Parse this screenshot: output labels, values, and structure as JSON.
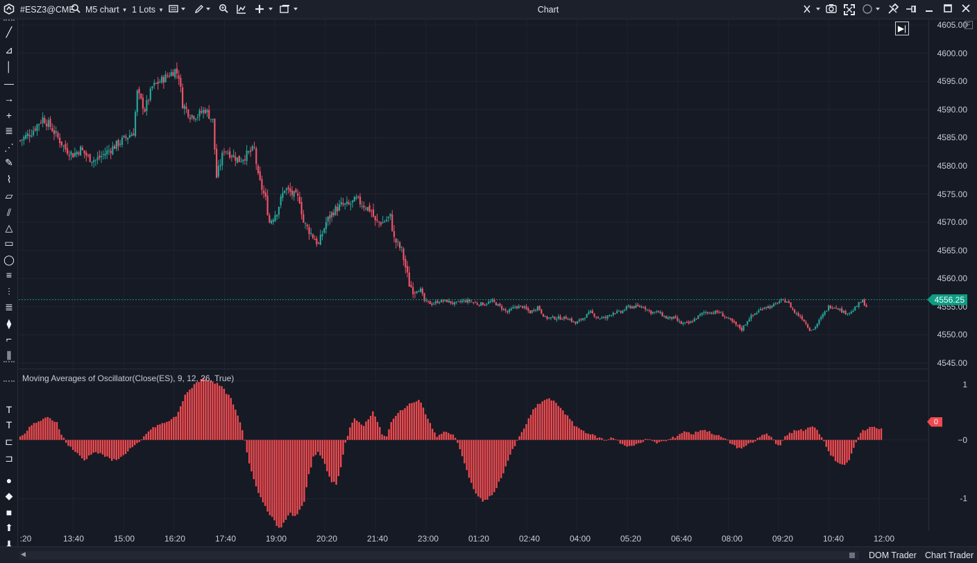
{
  "toolbar": {
    "logo_icon": "app-logo-icon",
    "symbol": "#ESZ3@CME",
    "chart_type": "M5 chart",
    "lots": "1 Lots",
    "window_title": "Chart"
  },
  "left_tools": [
    "line-tool-icon",
    "pitchfork-icon",
    "vertical-line-icon",
    "horizontal-line-icon",
    "arrow-icon",
    "crosshair-icon",
    "fib-levels-icon",
    "polyline-icon",
    "pen-icon",
    "brush-icon",
    "ruler-icon",
    "parallel-channel-icon",
    "triangle-icon",
    "rectangle-icon",
    "ellipse-icon",
    "fib-fan-icon",
    "fib-time-icon",
    "fib-extension-icon",
    "pattern-icon",
    "step-icon",
    "bars-icon",
    "text-fill-icon",
    "text-icon",
    "label-icon",
    "callout-icon",
    "circle-marker-icon",
    "diamond-marker-icon",
    "square-marker-icon",
    "arrow-up-icon",
    "arrow-down-icon"
  ],
  "price_axis": [
    "4605.00",
    "4600.00",
    "4595.00",
    "4590.00",
    "4585.00",
    "4580.00",
    "4575.00",
    "4570.00",
    "4565.00",
    "4560.00",
    "4555.00",
    "4550.00",
    "4545.00"
  ],
  "last_price": "4556.25",
  "oscillator": {
    "label": "Moving Averages of Oscillator(Close(ES), 9, 12, 26, True)",
    "axis": [
      "1",
      "−0",
      "-1"
    ],
    "badge": "0"
  },
  "time_axis": [
    ":20",
    "13:40",
    "15:00",
    "16:20",
    "17:40",
    "19:00",
    "20:20",
    "21:40",
    "23:00",
    "01:20",
    "02:40",
    "04:00",
    "05:20",
    "06:40",
    "08:00",
    "09:20",
    "10:40",
    "12:00"
  ],
  "bottom": {
    "dom_trader": "DOM Trader",
    "chart_trader": "Chart Trader"
  },
  "colors": {
    "up": "#26a69a",
    "down": "#ef5368",
    "histogram": "#ef4a4f",
    "last_price": "#0f9b84",
    "background": "#131722"
  },
  "chart_data": [
    {
      "type": "candlestick",
      "symbol": "#ESZ3@CME",
      "timeframe": "M5",
      "ylim": [
        4544,
        4606
      ],
      "x_ticks": [
        ":20",
        "13:40",
        "15:00",
        "16:20",
        "17:40",
        "19:00",
        "20:20",
        "21:40",
        "23:00",
        "01:20",
        "02:40",
        "04:00",
        "05:20",
        "06:40",
        "08:00",
        "09:20",
        "10:40",
        "12:00"
      ],
      "close_path": [
        [
          0,
          4584.5
        ],
        [
          6,
          4586
        ],
        [
          12,
          4588.5
        ],
        [
          16,
          4587
        ],
        [
          20,
          4585
        ],
        [
          24,
          4583
        ],
        [
          28,
          4582
        ],
        [
          32,
          4583
        ],
        [
          36,
          4581.5
        ],
        [
          40,
          4581
        ],
        [
          44,
          4582
        ],
        [
          48,
          4583
        ],
        [
          52,
          4584
        ],
        [
          56,
          4585
        ],
        [
          60,
          4586
        ],
        [
          62,
          4593
        ],
        [
          66,
          4590
        ],
        [
          70,
          4594
        ],
        [
          74,
          4595
        ],
        [
          78,
          4596
        ],
        [
          82,
          4597
        ],
        [
          84,
          4596
        ],
        [
          86,
          4591
        ],
        [
          90,
          4589
        ],
        [
          94,
          4589
        ],
        [
          98,
          4590
        ],
        [
          102,
          4588
        ],
        [
          104,
          4578
        ],
        [
          108,
          4583
        ],
        [
          112,
          4582
        ],
        [
          116,
          4581
        ],
        [
          120,
          4582
        ],
        [
          124,
          4583
        ],
        [
          126,
          4578
        ],
        [
          130,
          4574
        ],
        [
          132,
          4570
        ],
        [
          136,
          4572
        ],
        [
          140,
          4576
        ],
        [
          144,
          4575
        ],
        [
          148,
          4574
        ],
        [
          150,
          4570
        ],
        [
          154,
          4568
        ],
        [
          158,
          4566
        ],
        [
          162,
          4570
        ],
        [
          166,
          4572
        ],
        [
          170,
          4573
        ],
        [
          174,
          4573
        ],
        [
          178,
          4574
        ],
        [
          182,
          4573
        ],
        [
          186,
          4572
        ],
        [
          188,
          4570
        ],
        [
          192,
          4570
        ],
        [
          196,
          4571
        ],
        [
          198,
          4567
        ],
        [
          202,
          4565
        ],
        [
          204,
          4562
        ],
        [
          206,
          4559
        ],
        [
          208,
          4558
        ],
        [
          210,
          4558
        ],
        [
          212,
          4558
        ],
        [
          214,
          4556
        ],
        [
          218,
          4555.5
        ],
        [
          222,
          4556
        ],
        [
          226,
          4556
        ],
        [
          230,
          4555.5
        ],
        [
          234,
          4556
        ],
        [
          238,
          4556
        ],
        [
          242,
          4555.5
        ],
        [
          246,
          4555.5
        ],
        [
          250,
          4556
        ],
        [
          254,
          4555
        ],
        [
          258,
          4554
        ],
        [
          262,
          4555
        ],
        [
          266,
          4555
        ],
        [
          270,
          4554
        ],
        [
          274,
          4555
        ],
        [
          278,
          4553
        ],
        [
          282,
          4553
        ],
        [
          286,
          4553
        ],
        [
          290,
          4553
        ],
        [
          294,
          4552
        ],
        [
          298,
          4553
        ],
        [
          302,
          4554
        ],
        [
          306,
          4553
        ],
        [
          310,
          4553
        ],
        [
          314,
          4554
        ],
        [
          318,
          4554
        ],
        [
          322,
          4555
        ],
        [
          326,
          4555
        ],
        [
          330,
          4555
        ],
        [
          334,
          4554
        ],
        [
          338,
          4554
        ],
        [
          342,
          4553
        ],
        [
          346,
          4553
        ],
        [
          350,
          4552
        ],
        [
          354,
          4552
        ],
        [
          358,
          4553
        ],
        [
          362,
          4554
        ],
        [
          366,
          4554
        ],
        [
          370,
          4554
        ],
        [
          374,
          4553
        ],
        [
          378,
          4552
        ],
        [
          382,
          4551
        ],
        [
          386,
          4553
        ],
        [
          390,
          4554
        ],
        [
          394,
          4555
        ],
        [
          398,
          4555
        ],
        [
          402,
          4556
        ],
        [
          406,
          4556
        ],
        [
          410,
          4554
        ],
        [
          414,
          4553
        ],
        [
          418,
          4551
        ],
        [
          420,
          4551
        ],
        [
          424,
          4553
        ],
        [
          428,
          4555
        ],
        [
          432,
          4555
        ],
        [
          436,
          4554
        ],
        [
          440,
          4554
        ],
        [
          444,
          4555.5
        ],
        [
          446,
          4556
        ],
        [
          448,
          4555
        ]
      ]
    },
    {
      "type": "bar",
      "title": "Moving Averages of Oscillator(Close(ES), 9, 12, 26, True)",
      "ylim": [
        -1.55,
        1.2
      ],
      "x_ticks": [
        ":20",
        "13:40",
        "15:00",
        "16:20",
        "17:40",
        "19:00",
        "20:20",
        "21:40",
        "23:00",
        "01:20",
        "02:40",
        "04:00",
        "05:20",
        "06:40",
        "08:00",
        "09:20",
        "10:40",
        "12:00"
      ],
      "last_value": 0,
      "value_path": [
        [
          0,
          0.05
        ],
        [
          6,
          0.28
        ],
        [
          12,
          0.38
        ],
        [
          16,
          0.3
        ],
        [
          18,
          0.1
        ],
        [
          20,
          -0.05
        ],
        [
          24,
          -0.2
        ],
        [
          28,
          -0.35
        ],
        [
          32,
          -0.2
        ],
        [
          36,
          -0.25
        ],
        [
          40,
          -0.35
        ],
        [
          44,
          -0.3
        ],
        [
          48,
          -0.15
        ],
        [
          52,
          -0.05
        ],
        [
          56,
          0.15
        ],
        [
          60,
          0.25
        ],
        [
          64,
          0.3
        ],
        [
          68,
          0.4
        ],
        [
          72,
          0.75
        ],
        [
          76,
          0.95
        ],
        [
          80,
          1.05
        ],
        [
          84,
          1.0
        ],
        [
          88,
          0.9
        ],
        [
          92,
          0.7
        ],
        [
          96,
          0.3
        ],
        [
          98,
          0.0
        ],
        [
          100,
          -0.4
        ],
        [
          104,
          -0.9
        ],
        [
          108,
          -1.2
        ],
        [
          112,
          -1.45
        ],
        [
          114,
          -1.5
        ],
        [
          116,
          -1.35
        ],
        [
          118,
          -1.25
        ],
        [
          120,
          -1.3
        ],
        [
          122,
          -1.2
        ],
        [
          124,
          -1.05
        ],
        [
          126,
          -0.6
        ],
        [
          128,
          -0.3
        ],
        [
          130,
          -0.2
        ],
        [
          132,
          -0.3
        ],
        [
          134,
          -0.55
        ],
        [
          136,
          -0.7
        ],
        [
          138,
          -0.75
        ],
        [
          140,
          -0.45
        ],
        [
          142,
          -0.05
        ],
        [
          144,
          0.2
        ],
        [
          146,
          0.35
        ],
        [
          148,
          0.3
        ],
        [
          150,
          0.25
        ],
        [
          152,
          0.35
        ],
        [
          154,
          0.5
        ],
        [
          156,
          0.3
        ],
        [
          158,
          0.1
        ],
        [
          160,
          0.05
        ],
        [
          162,
          0.3
        ],
        [
          166,
          0.5
        ],
        [
          170,
          0.6
        ],
        [
          172,
          0.65
        ],
        [
          174,
          0.7
        ],
        [
          176,
          0.55
        ],
        [
          178,
          0.35
        ],
        [
          180,
          0.2
        ],
        [
          182,
          0.05
        ],
        [
          184,
          0.1
        ],
        [
          186,
          0.15
        ],
        [
          188,
          0.1
        ],
        [
          190,
          0.05
        ],
        [
          192,
          -0.15
        ],
        [
          194,
          -0.4
        ],
        [
          196,
          -0.65
        ],
        [
          198,
          -0.85
        ],
        [
          200,
          -0.95
        ],
        [
          202,
          -1.05
        ],
        [
          204,
          -1.0
        ],
        [
          206,
          -0.95
        ],
        [
          208,
          -0.8
        ],
        [
          210,
          -0.65
        ],
        [
          212,
          -0.45
        ],
        [
          214,
          -0.25
        ],
        [
          216,
          -0.1
        ],
        [
          218,
          0.05
        ],
        [
          220,
          0.2
        ],
        [
          222,
          0.35
        ],
        [
          224,
          0.5
        ],
        [
          226,
          0.6
        ],
        [
          228,
          0.65
        ],
        [
          230,
          0.7
        ],
        [
          232,
          0.68
        ],
        [
          234,
          0.62
        ],
        [
          236,
          0.55
        ],
        [
          238,
          0.45
        ],
        [
          240,
          0.35
        ],
        [
          242,
          0.25
        ],
        [
          244,
          0.2
        ],
        [
          246,
          0.15
        ],
        [
          248,
          0.12
        ],
        [
          250,
          0.08
        ],
        [
          252,
          0.05
        ],
        [
          254,
          0.02
        ],
        [
          256,
          -0.02
        ],
        [
          258,
          0.05
        ],
        [
          260,
          0.02
        ],
        [
          262,
          -0.05
        ],
        [
          264,
          -0.1
        ],
        [
          266,
          -0.12
        ],
        [
          268,
          -0.1
        ],
        [
          270,
          -0.05
        ],
        [
          272,
          -0.02
        ],
        [
          274,
          0.02
        ],
        [
          276,
          -0.03
        ],
        [
          278,
          -0.05
        ],
        [
          280,
          -0.03
        ],
        [
          282,
          -0.02
        ],
        [
          284,
          0.02
        ],
        [
          286,
          0.05
        ],
        [
          288,
          0.1
        ],
        [
          290,
          0.15
        ],
        [
          292,
          0.12
        ],
        [
          294,
          0.1
        ],
        [
          296,
          0.15
        ],
        [
          298,
          0.18
        ],
        [
          300,
          0.15
        ],
        [
          302,
          0.12
        ],
        [
          304,
          0.08
        ],
        [
          306,
          0.05
        ],
        [
          308,
          0.02
        ],
        [
          310,
          -0.05
        ],
        [
          312,
          -0.1
        ],
        [
          314,
          -0.15
        ],
        [
          316,
          -0.12
        ],
        [
          318,
          -0.08
        ],
        [
          320,
          -0.05
        ],
        [
          322,
          0.02
        ],
        [
          324,
          0.08
        ],
        [
          326,
          0.1
        ],
        [
          328,
          0.05
        ],
        [
          330,
          -0.05
        ],
        [
          332,
          -0.1
        ],
        [
          334,
          0.05
        ],
        [
          336,
          0.12
        ],
        [
          338,
          0.15
        ],
        [
          340,
          0.18
        ],
        [
          342,
          0.15
        ],
        [
          344,
          0.2
        ],
        [
          346,
          0.22
        ],
        [
          348,
          0.18
        ],
        [
          350,
          0.05
        ],
        [
          352,
          -0.1
        ],
        [
          354,
          -0.25
        ],
        [
          356,
          -0.35
        ],
        [
          358,
          -0.4
        ],
        [
          360,
          -0.42
        ],
        [
          362,
          -0.35
        ],
        [
          364,
          -0.15
        ],
        [
          366,
          0.05
        ],
        [
          368,
          0.15
        ],
        [
          370,
          0.2
        ],
        [
          372,
          0.22
        ],
        [
          374,
          0.2
        ],
        [
          376,
          0.2
        ]
      ]
    }
  ]
}
